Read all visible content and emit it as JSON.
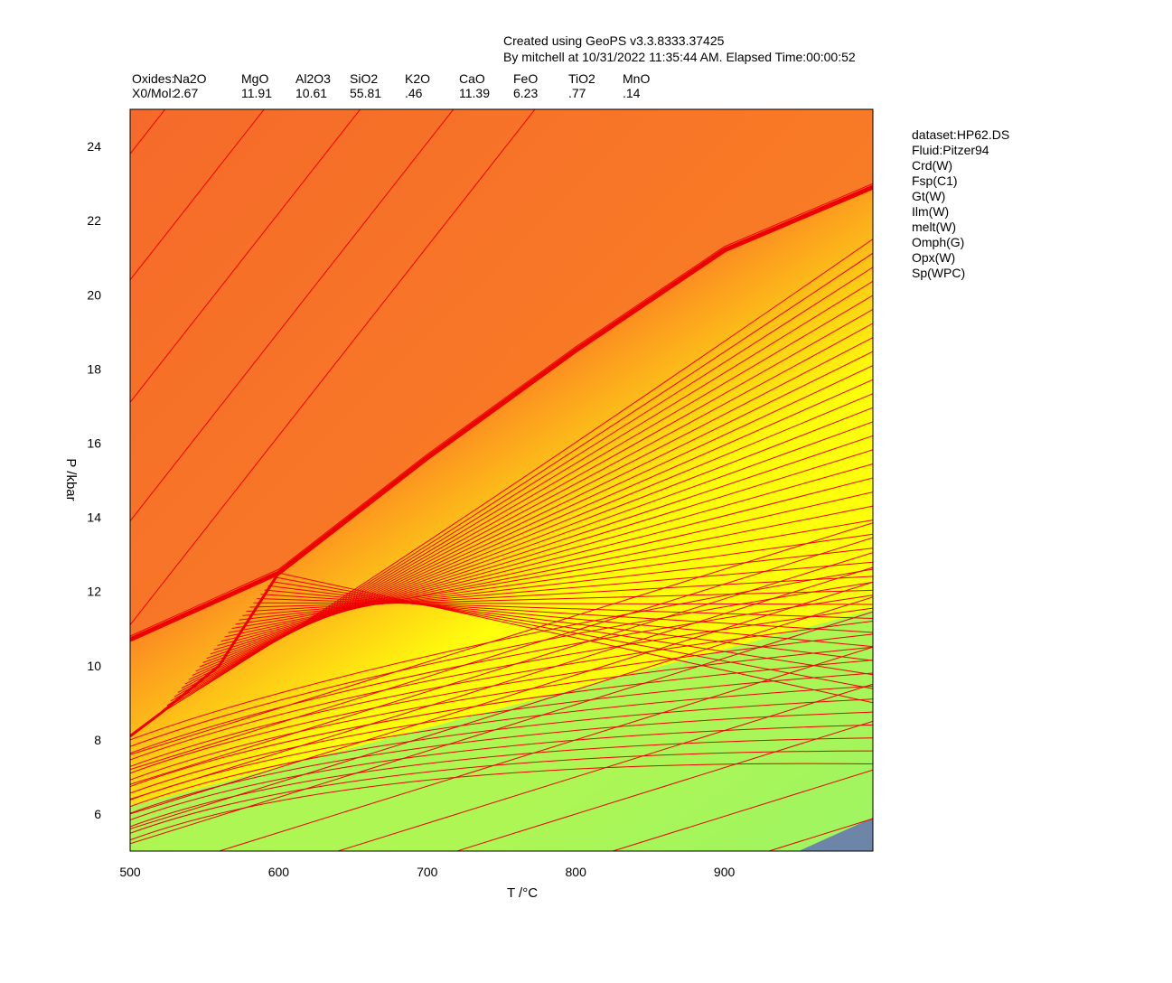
{
  "header": {
    "line1": "Created using GeoPS v3.3.8333.37425",
    "line2": "By mitchell at 10/31/2022 11:35:44 AM. Elapsed Time:00:00:52"
  },
  "composition": {
    "row1_label": "Oxides:",
    "row2_label": "X0/Mol:",
    "oxides": [
      {
        "name": "Na2O",
        "value": "2.67"
      },
      {
        "name": "MgO",
        "value": "11.91"
      },
      {
        "name": "Al2O3",
        "value": "10.61"
      },
      {
        "name": "SiO2",
        "value": "55.81"
      },
      {
        "name": "K2O",
        "value": ".46"
      },
      {
        "name": "CaO",
        "value": "11.39"
      },
      {
        "name": "FeO",
        "value": "6.23"
      },
      {
        "name": "TiO2",
        "value": ".77"
      },
      {
        "name": "MnO",
        "value": ".14"
      }
    ]
  },
  "legend": {
    "items": [
      "dataset:HP62.DS",
      "Fluid:Pitzer94",
      "Crd(W)",
      "Fsp(C1)",
      "Gt(W)",
      "Ilm(W)",
      "melt(W)",
      "Omph(G)",
      "Opx(W)",
      "Sp(WPC)"
    ]
  },
  "colors": {
    "orange_dark": "#f56a2a",
    "orange": "#fb8a22",
    "yellow": "#ffff0c",
    "green": "#a0f460",
    "blue_grey": "#6d86a8",
    "contour": "#ee0000",
    "frame": "#000000"
  },
  "chart_data": {
    "type": "heatmap",
    "xlabel": "T /°C",
    "ylabel": "P /kbar",
    "xlim": [
      500,
      1000
    ],
    "ylim": [
      5,
      25
    ],
    "x_ticks": [
      500,
      600,
      700,
      800,
      900
    ],
    "y_ticks": [
      6,
      8,
      10,
      12,
      14,
      16,
      18,
      20,
      22,
      24
    ],
    "melt_boundary": [
      [
        500,
        10.7
      ],
      [
        600,
        12.5
      ],
      [
        700,
        15.6
      ],
      [
        800,
        18.5
      ],
      [
        900,
        21.2
      ],
      [
        1000,
        22.9
      ]
    ],
    "solidus_kink": [
      [
        500,
        8.1
      ],
      [
        520,
        8.7
      ],
      [
        560,
        10.0
      ],
      [
        600,
        12.5
      ]
    ],
    "contours_above_boundary": [
      {
        "start": [
          500,
          23.8
        ],
        "slope": 0.051
      },
      {
        "start": [
          500,
          20.4
        ],
        "slope": 0.051
      },
      {
        "start": [
          500,
          17.1
        ],
        "slope": 0.051
      },
      {
        "start": [
          500,
          13.9
        ],
        "slope": 0.051
      },
      {
        "start": [
          500,
          11.1
        ],
        "slope": 0.051
      }
    ],
    "contours_lower_field": [
      {
        "start": [
          500,
          7.6
        ],
        "slope": 0.0125
      },
      {
        "start": [
          500,
          7.2
        ],
        "slope": 0.0125
      },
      {
        "start": [
          500,
          6.8
        ],
        "slope": 0.0125
      },
      {
        "start": [
          500,
          6.4
        ],
        "slope": 0.0125
      },
      {
        "start": [
          500,
          6.0
        ],
        "slope": 0.0125
      },
      {
        "start": [
          500,
          5.6
        ],
        "slope": 0.0125
      },
      {
        "start": [
          500,
          5.2
        ],
        "slope": 0.0125
      },
      {
        "start": [
          560,
          5.0
        ],
        "slope": 0.0125
      },
      {
        "start": [
          640,
          5.0
        ],
        "slope": 0.0125
      },
      {
        "start": [
          720,
          5.0
        ],
        "slope": 0.0125
      },
      {
        "start": [
          825,
          5.0
        ],
        "slope": 0.0125
      },
      {
        "start": [
          930,
          5.0
        ],
        "slope": 0.0125
      }
    ],
    "corner_field": [
      [
        950,
        5.0
      ],
      [
        1000,
        5.9
      ],
      [
        1000,
        5.0
      ]
    ]
  }
}
